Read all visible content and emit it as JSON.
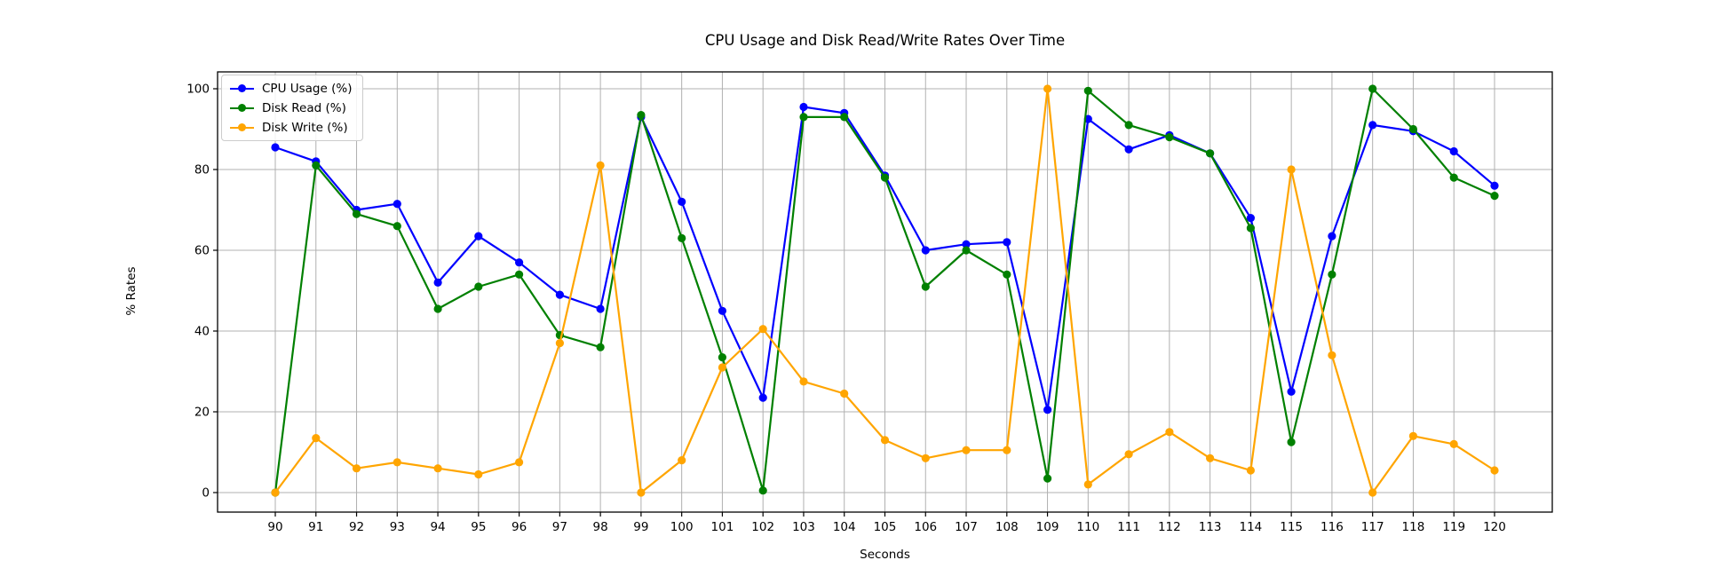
{
  "figure": {
    "title": "CPU Usage and Disk Read/Write Rates Over Time",
    "xlabel": "Seconds",
    "ylabel": "% Rates"
  },
  "chart_data": {
    "type": "line",
    "title": "CPU Usage and Disk Read/Write Rates Over Time",
    "xlabel": "Seconds",
    "ylabel": "% Rates",
    "grid": true,
    "legend_position": "upper left",
    "ylim": [
      -4.8,
      104.2
    ],
    "yticks": [
      0,
      20,
      40,
      60,
      80,
      100
    ],
    "x": [
      90,
      91,
      92,
      93,
      94,
      95,
      96,
      97,
      98,
      99,
      100,
      101,
      102,
      103,
      104,
      105,
      106,
      107,
      108,
      109,
      110,
      111,
      112,
      113,
      114,
      115,
      116,
      117,
      118,
      119,
      120
    ],
    "series": [
      {
        "name": "CPU Usage (%)",
        "color": "#0000ff",
        "values": [
          85.5,
          82,
          70,
          71.5,
          52,
          63.5,
          57,
          49,
          45.5,
          93,
          72,
          45,
          23.5,
          95.5,
          94,
          78.5,
          60,
          61.5,
          62,
          20.5,
          92.5,
          85,
          88.5,
          84,
          68,
          25,
          63.5,
          91,
          89.5,
          84.5,
          76
        ]
      },
      {
        "name": "Disk Read (%)",
        "color": "#008000",
        "values": [
          0,
          81,
          69,
          66,
          45.5,
          51,
          54,
          39,
          36,
          93.5,
          63,
          33.5,
          0.5,
          93,
          93,
          78,
          51,
          60,
          54,
          3.5,
          99.5,
          91,
          88,
          84,
          65.5,
          12.5,
          54,
          100,
          90,
          78,
          73.5
        ]
      },
      {
        "name": "Disk Write (%)",
        "color": "#ffa500",
        "values": [
          0,
          13.5,
          6,
          7.5,
          6,
          4.5,
          7.5,
          37,
          81,
          0,
          8,
          31,
          40.5,
          27.5,
          24.5,
          13,
          8.5,
          10.5,
          10.5,
          100,
          2,
          9.5,
          15,
          8.5,
          5.5,
          80,
          34,
          0,
          14,
          12,
          5.5
        ]
      }
    ]
  }
}
